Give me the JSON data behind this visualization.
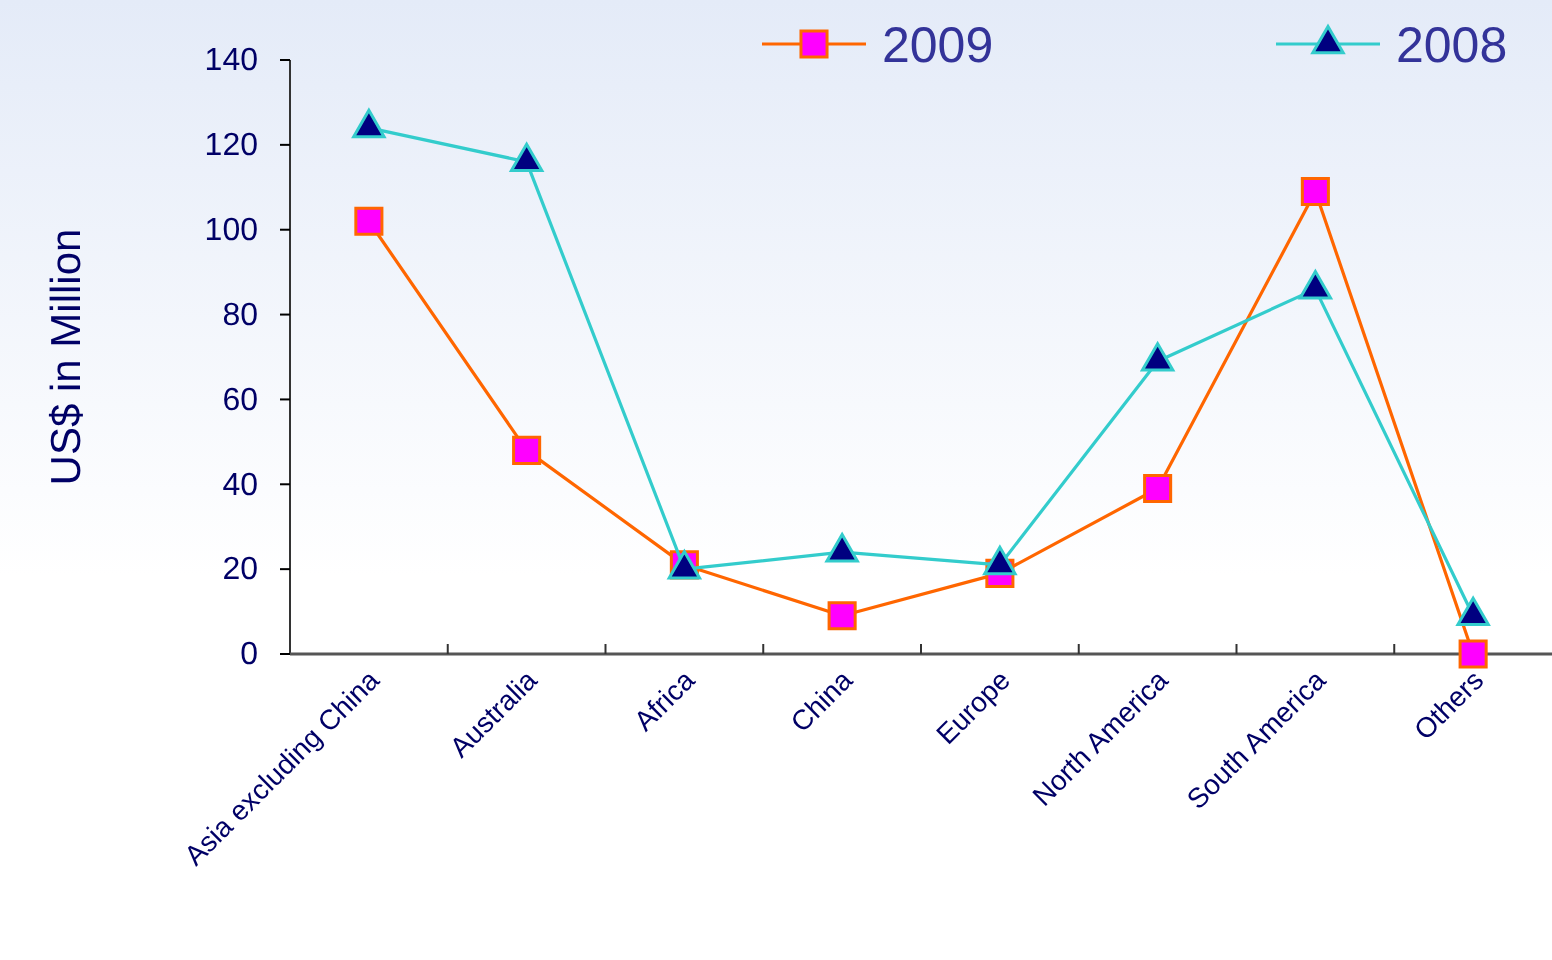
{
  "chart_data": {
    "type": "line",
    "ylabel": "US$ in Million",
    "categories": [
      "Asia excluding China",
      "Australia",
      "Africa",
      "China",
      "Europe",
      "North America",
      "South America",
      "Others"
    ],
    "series": [
      {
        "name": "2009",
        "color": "#ff6600",
        "marker": "square",
        "values": [
          102,
          48,
          21,
          9,
          19,
          39,
          109,
          0
        ]
      },
      {
        "name": "2008",
        "color": "#33cccc",
        "marker": "triangle",
        "values": [
          124,
          116,
          20,
          24,
          21,
          69,
          86,
          9
        ]
      }
    ],
    "ylim": [
      0,
      140
    ],
    "yticks": [
      0,
      20,
      40,
      60,
      80,
      100,
      120,
      140
    ],
    "grid": false,
    "legend": "top right",
    "line_style": "solid"
  }
}
